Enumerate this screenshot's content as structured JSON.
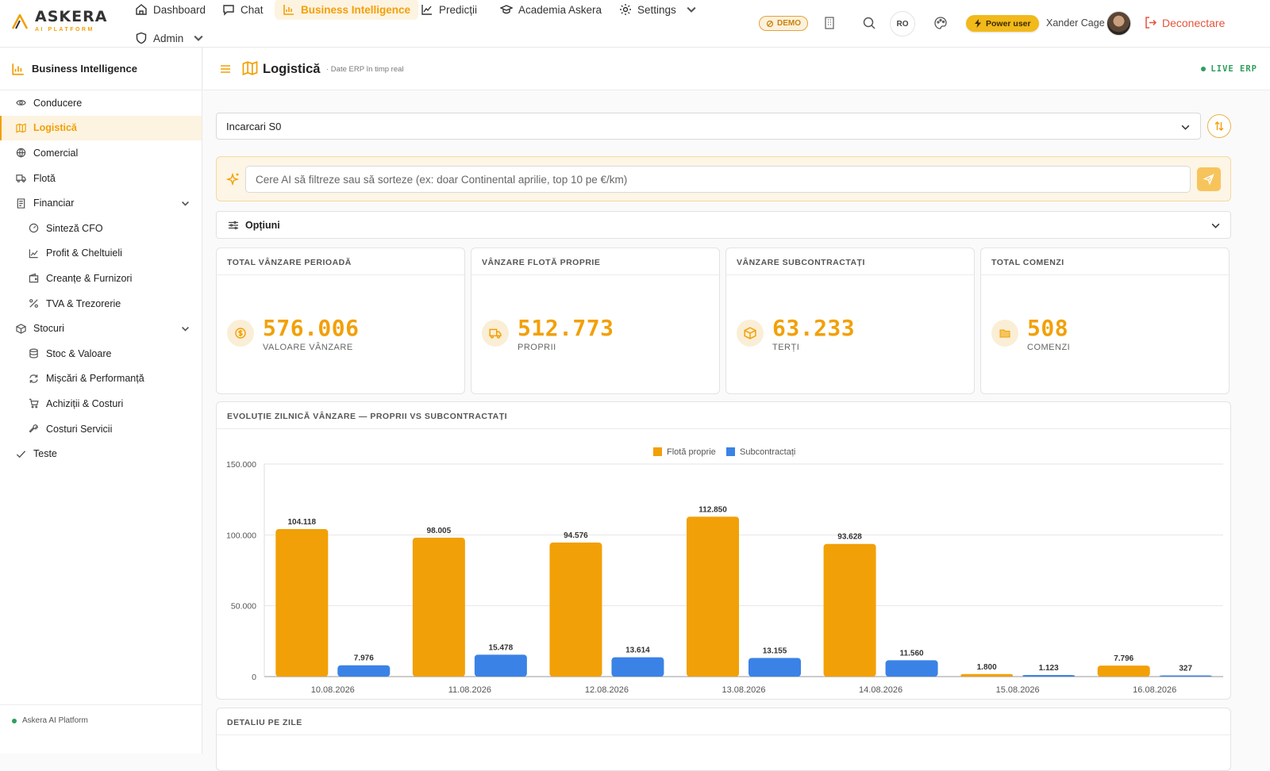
{
  "app": {
    "brand": "ASKERA",
    "brand_sub": "AI PLATFORM",
    "accent": "#f2a007",
    "secondary": "#3b82e6"
  },
  "nav": {
    "items": [
      {
        "label": "Dashboard",
        "icon": "home-icon"
      },
      {
        "label": "Chat",
        "icon": "chat-icon"
      },
      {
        "label": "Business Intelligence",
        "icon": "bar-chart-icon",
        "active": true
      },
      {
        "label": "Predicții",
        "icon": "trend-icon"
      },
      {
        "label": "Academia Askera",
        "icon": "graduation-cap-icon"
      },
      {
        "label": "Settings",
        "icon": "gear-icon"
      },
      {
        "label": "Admin",
        "icon": "shield-icon"
      }
    ]
  },
  "header_right": {
    "demo": "DEMO",
    "lang": "RO",
    "power": "Power user",
    "user": "Xander Cage",
    "logout": "Deconectare"
  },
  "sidebar": {
    "title": "Business Intelligence",
    "items": [
      {
        "label": "Conducere",
        "icon": "eye-icon"
      },
      {
        "label": "Logistică",
        "icon": "map-icon",
        "active": true
      },
      {
        "label": "Comercial",
        "icon": "globe-icon"
      },
      {
        "label": "Flotă",
        "icon": "truck-icon"
      },
      {
        "label": "Financiar",
        "icon": "receipt-icon",
        "expanded": true
      },
      {
        "label": "Sinteză CFO",
        "icon": "gauge-icon",
        "sub": true
      },
      {
        "label": "Profit & Cheltuieli",
        "icon": "line-chart-icon",
        "sub": true
      },
      {
        "label": "Creanțe & Furnizori",
        "icon": "wallet-icon",
        "sub": true
      },
      {
        "label": "TVA & Trezorerie",
        "icon": "percent-icon",
        "sub": true
      },
      {
        "label": "Stocuri",
        "icon": "box-icon",
        "expanded": true
      },
      {
        "label": "Stoc & Valoare",
        "icon": "database-icon",
        "sub": true
      },
      {
        "label": "Mișcări & Performanță",
        "icon": "refresh-icon",
        "sub": true
      },
      {
        "label": "Achiziții & Costuri",
        "icon": "cart-icon",
        "sub": true
      },
      {
        "label": "Costuri Servicii",
        "icon": "wrench-icon",
        "sub": true
      },
      {
        "label": "Teste",
        "icon": "check-icon"
      }
    ],
    "footer": "Askera AI Platform"
  },
  "page": {
    "title": "Logistică",
    "subtitle": "· Date ERP în timp real",
    "live": "LIVE ERP",
    "select_value": "Incarcari S0",
    "ai_placeholder": "Cere AI să filtreze sau să sorteze (ex: doar Continental aprilie, top 10 pe €/km)",
    "options_label": "Opțiuni",
    "detail_title": "DETALIU PE ZILE"
  },
  "kpis": [
    {
      "title": "TOTAL VÂNZARE PERIOADĂ",
      "value": "576.006",
      "label": "VALOARE VÂNZARE",
      "icon": "coin-icon"
    },
    {
      "title": "VÂNZARE FLOTĂ PROPRIE",
      "value": "512.773",
      "label": "PROPRII",
      "icon": "truck-icon"
    },
    {
      "title": "VÂNZARE SUBCONTRACTAȚI",
      "value": "63.233",
      "label": "TERȚI",
      "icon": "box-icon"
    },
    {
      "title": "TOTAL COMENZI",
      "value": "508",
      "label": "COMENZI",
      "icon": "folder-icon"
    }
  ],
  "chart_title": "EVOLUȚIE ZILNICĂ VÂNZARE — PROPRII VS SUBCONTRACTAȚI",
  "chart_data": {
    "type": "bar",
    "categories": [
      "10.08.2026",
      "11.08.2026",
      "12.08.2026",
      "13.08.2026",
      "14.08.2026",
      "15.08.2026",
      "16.08.2026"
    ],
    "series": [
      {
        "name": "Flotă proprie",
        "color": "#f2a007",
        "values": [
          104118,
          98005,
          94576,
          112850,
          93628,
          1800,
          7796
        ],
        "labels": [
          "104.118",
          "98.005",
          "94.576",
          "112.850",
          "93.628",
          "1.800",
          "7.796"
        ]
      },
      {
        "name": "Subcontractați",
        "color": "#3b82e6",
        "values": [
          7976,
          15478,
          13614,
          13155,
          11560,
          1123,
          327
        ],
        "labels": [
          "7.976",
          "15.478",
          "13.614",
          "13.155",
          "11.560",
          "1.123",
          "327"
        ]
      }
    ],
    "ylim": [
      0,
      150000
    ],
    "yticks": [
      0,
      50000,
      100000,
      150000
    ],
    "ytick_labels": [
      "0",
      "50.000",
      "100.000",
      "150.000"
    ],
    "legend": "top-center",
    "grid": true
  }
}
